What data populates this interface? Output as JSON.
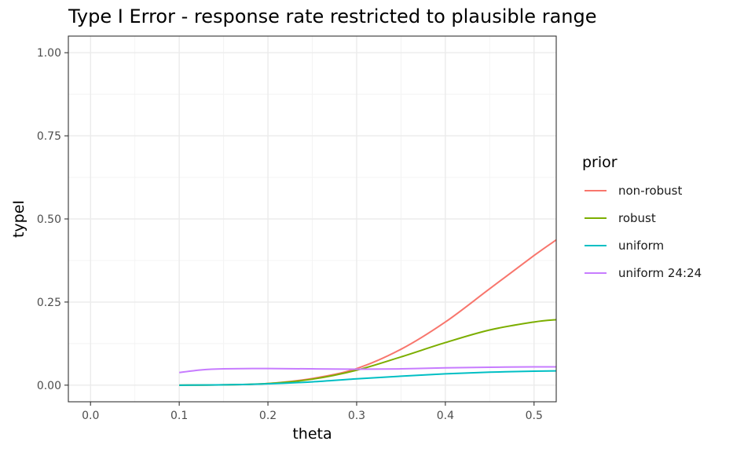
{
  "chart_data": {
    "type": "line",
    "title": "Type I Error - response rate restricted to plausible range",
    "xlabel": "theta",
    "ylabel": "typeI",
    "xlim": [
      -0.025,
      0.525
    ],
    "ylim": [
      -0.05,
      1.05
    ],
    "x_ticks": [
      0.0,
      0.1,
      0.2,
      0.3,
      0.4,
      0.5
    ],
    "x_tick_labels": [
      "0.0",
      "0.1",
      "0.2",
      "0.3",
      "0.4",
      "0.5"
    ],
    "y_ticks": [
      0.0,
      0.25,
      0.5,
      0.75,
      1.0
    ],
    "y_tick_labels": [
      "0.00",
      "0.25",
      "0.50",
      "0.75",
      "1.00"
    ],
    "grid": true,
    "legend": {
      "title": "prior",
      "placement": "right"
    },
    "series": [
      {
        "name": "non-robust",
        "color": "#F8766D",
        "x": [
          0.1,
          0.15,
          0.2,
          0.25,
          0.3,
          0.35,
          0.4,
          0.45,
          0.5,
          0.525
        ],
        "y": [
          0.0,
          0.001,
          0.005,
          0.02,
          0.05,
          0.108,
          0.19,
          0.29,
          0.39,
          0.437
        ]
      },
      {
        "name": "robust",
        "color": "#7CAE00",
        "x": [
          0.1,
          0.15,
          0.2,
          0.25,
          0.3,
          0.35,
          0.4,
          0.45,
          0.5,
          0.525
        ],
        "y": [
          0.0,
          0.001,
          0.005,
          0.018,
          0.045,
          0.085,
          0.128,
          0.166,
          0.19,
          0.197
        ]
      },
      {
        "name": "uniform",
        "color": "#00BFC4",
        "x": [
          0.1,
          0.15,
          0.2,
          0.25,
          0.3,
          0.35,
          0.4,
          0.45,
          0.5,
          0.525
        ],
        "y": [
          0.0,
          0.001,
          0.004,
          0.01,
          0.019,
          0.027,
          0.034,
          0.039,
          0.042,
          0.043
        ]
      },
      {
        "name": "uniform 24:24",
        "color": "#C77CFF",
        "x": [
          0.1,
          0.125,
          0.15,
          0.2,
          0.25,
          0.3,
          0.35,
          0.4,
          0.45,
          0.5,
          0.525
        ],
        "y": [
          0.038,
          0.046,
          0.049,
          0.05,
          0.049,
          0.048,
          0.049,
          0.052,
          0.054,
          0.055,
          0.055
        ]
      }
    ]
  }
}
